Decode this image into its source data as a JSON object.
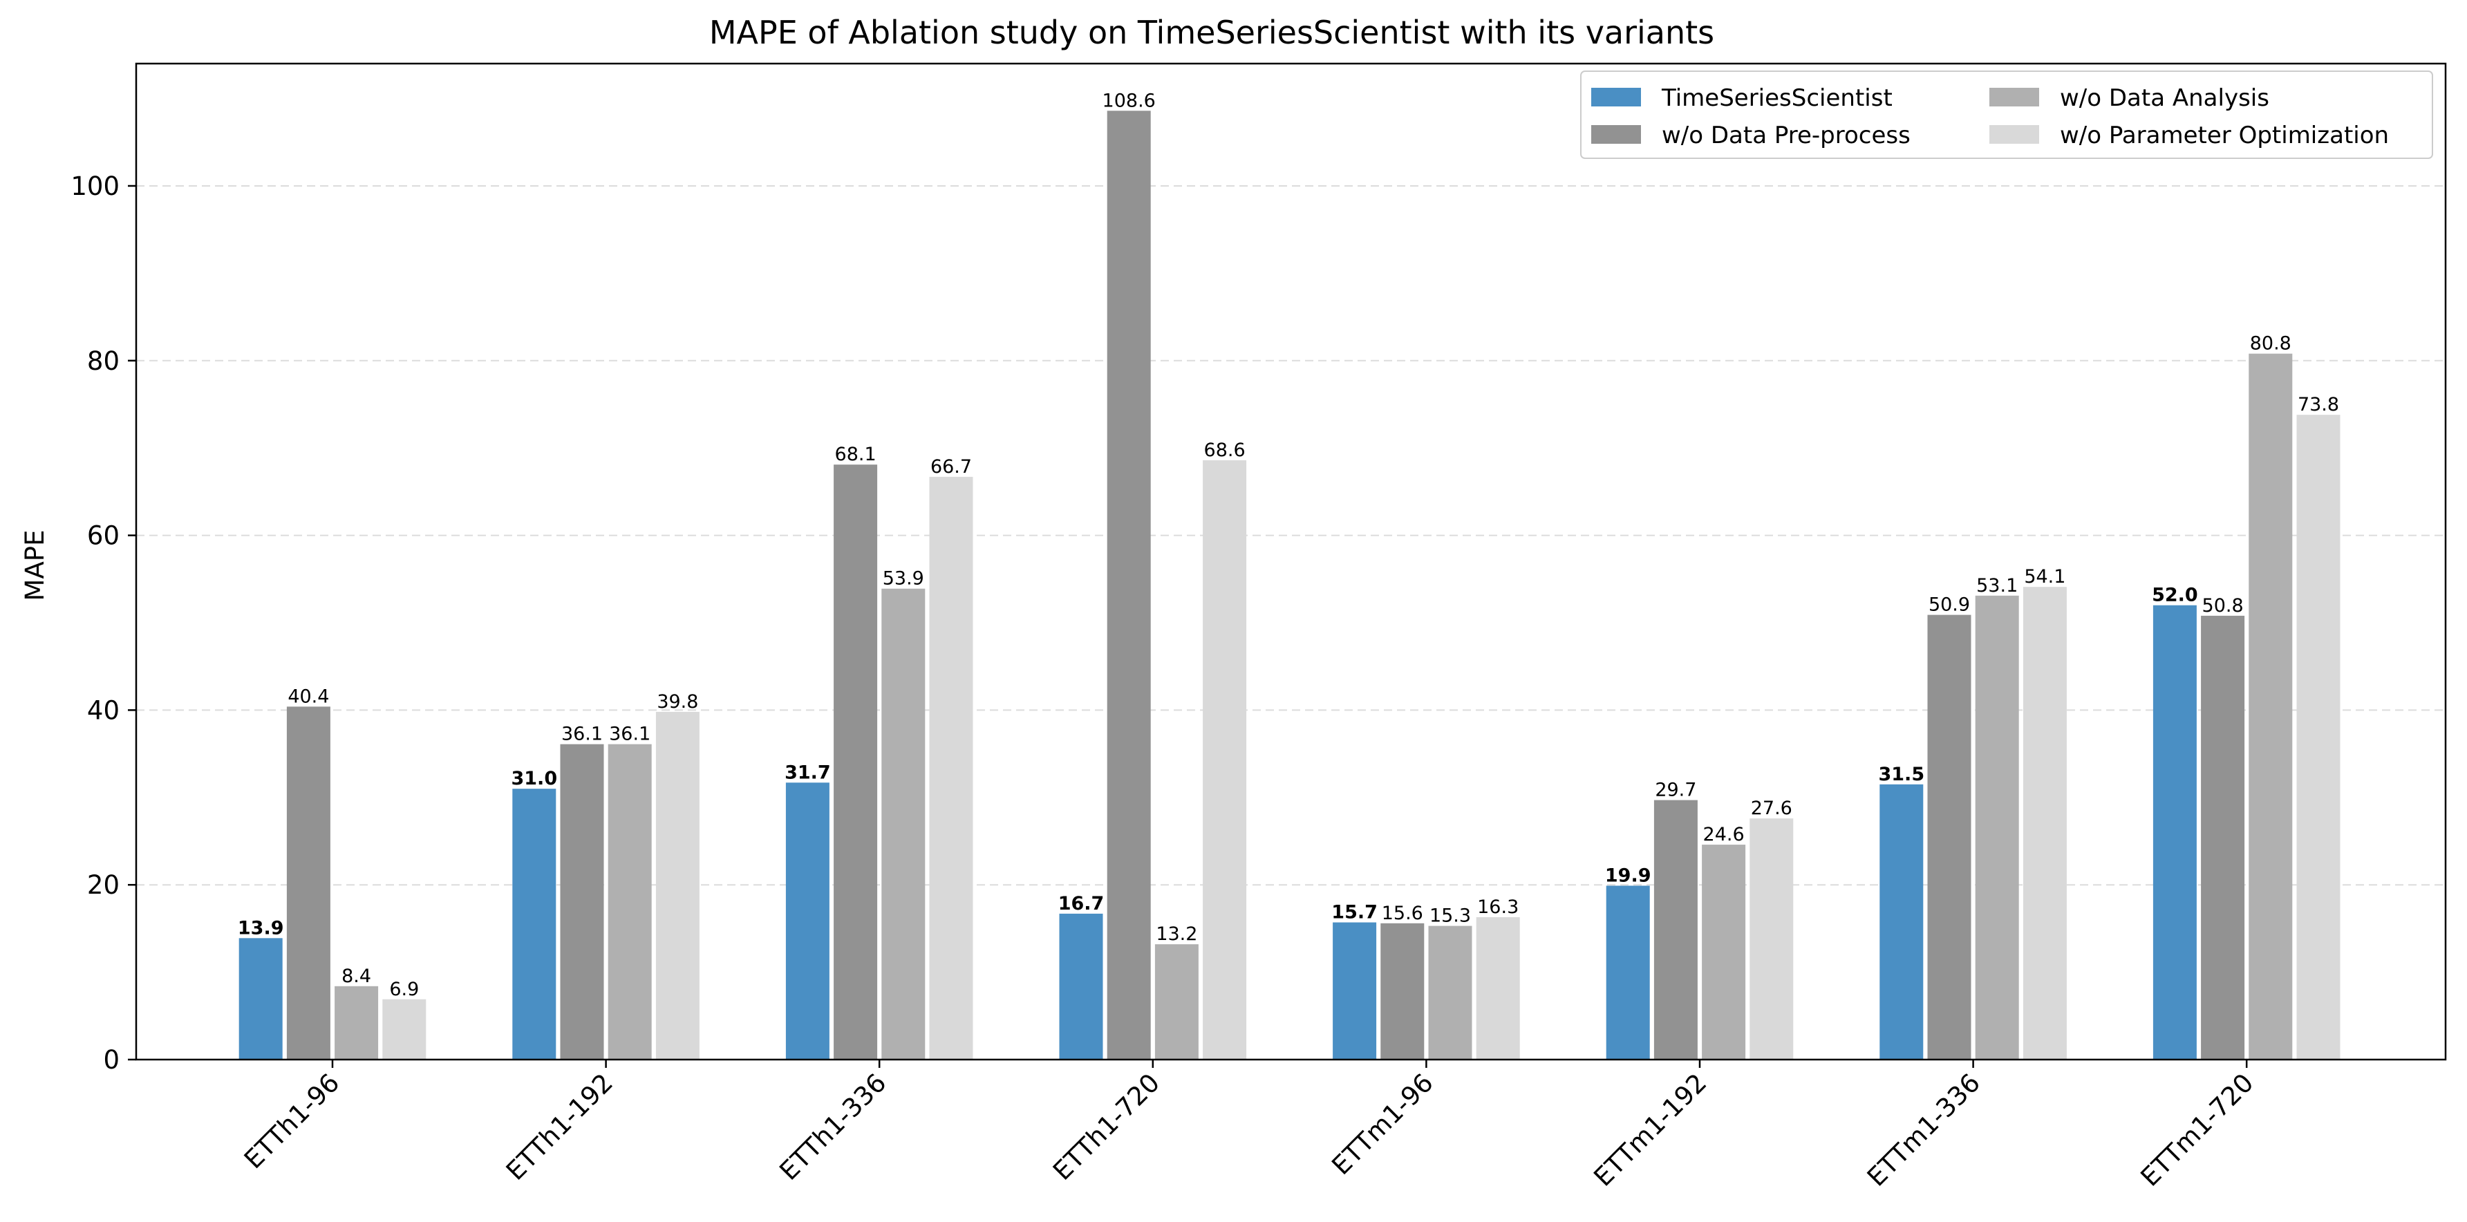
{
  "chart_data": {
    "type": "bar",
    "title": "MAPE of Ablation study on TimeSeriesScientist with its variants",
    "xlabel": "",
    "ylabel": "MAPE",
    "ylim": [
      0,
      114
    ],
    "yticks": [
      0,
      20,
      40,
      60,
      80,
      100
    ],
    "grid": "y-dashed",
    "legend_position": "top-right",
    "categories": [
      "ETTh1-96",
      "ETTh1-192",
      "ETTh1-336",
      "ETTh1-720",
      "ETTm1-96",
      "ETTm1-192",
      "ETTm1-336",
      "ETTm1-720"
    ],
    "series": [
      {
        "name": "TimeSeriesScientist",
        "color": "#4a8fc4",
        "label_bold": true,
        "values": [
          13.9,
          31.0,
          31.7,
          16.7,
          15.7,
          19.9,
          31.5,
          52.0
        ]
      },
      {
        "name": "w/o Data Pre-process",
        "color": "#929292",
        "label_bold": false,
        "values": [
          40.4,
          36.1,
          68.1,
          108.6,
          15.6,
          29.7,
          50.9,
          50.8
        ]
      },
      {
        "name": "w/o Data Analysis",
        "color": "#b0b0b0",
        "label_bold": false,
        "values": [
          8.4,
          36.1,
          53.9,
          13.2,
          15.3,
          24.6,
          53.1,
          80.8
        ]
      },
      {
        "name": "w/o Parameter Optimization",
        "color": "#d9d9d9",
        "label_bold": false,
        "values": [
          6.9,
          39.8,
          66.7,
          68.6,
          16.3,
          27.6,
          54.1,
          73.8
        ]
      }
    ]
  }
}
